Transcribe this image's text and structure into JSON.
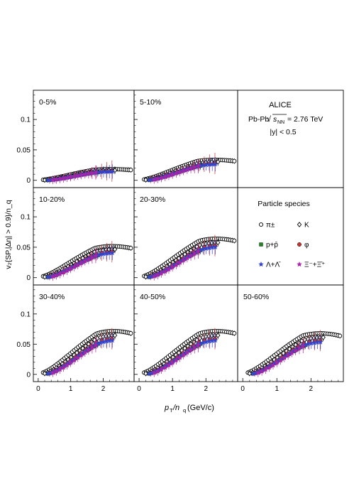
{
  "figure": {
    "experiment": "ALICE",
    "collision": "Pb-Pb",
    "energy_label": "= 2.76 TeV",
    "rapidity": "|y| < 0.5",
    "legend_title": "Particle species",
    "xlabel_main": "p",
    "xlabel_sub": "T",
    "xlabel_rest": "/n",
    "xlabel_q": "q",
    "xlabel_unit": " (GeV/c)",
    "ylabel": "v₂{SP,|Δη| > 0.9}/n_q"
  },
  "colors": {
    "pion": "#000000",
    "kaon": "#000000",
    "proton": "#1a8a1a",
    "phi": "#cc3333",
    "lambda": "#3344cc",
    "xi": "#aa22aa"
  },
  "legend": [
    {
      "key": "pion",
      "label": "π±",
      "marker": "open-circle"
    },
    {
      "key": "kaon",
      "label": "K",
      "marker": "open-diamond"
    },
    {
      "key": "proton",
      "label": "p+p̄",
      "marker": "filled-square"
    },
    {
      "key": "phi",
      "label": "φ",
      "marker": "filled-circle"
    },
    {
      "key": "lambda",
      "label": "Λ+Λ̄",
      "marker": "filled-star"
    },
    {
      "key": "xi",
      "label": "Ξ⁻+Ξ̄⁺",
      "marker": "filled-star"
    }
  ],
  "chart_data": {
    "type": "scatter",
    "xlabel": "pT/nq (GeV/c)",
    "ylabel": "v2{SP,|Δη| > 0.9}/nq",
    "xlim": [
      -0.15,
      2.95
    ],
    "ylim": [
      -0.012,
      0.148
    ],
    "xticks": [
      "0",
      "1",
      "2"
    ],
    "yticks": [
      "0",
      "0.05",
      "0.1"
    ],
    "panels": [
      {
        "label": "0-5%",
        "amp": 0.028,
        "peak_x": 1.4
      },
      {
        "label": "5-10%",
        "amp": 0.052,
        "peak_x": 1.45
      },
      {
        "label": "",
        "amp": 0,
        "peak_x": 0
      },
      {
        "label": "10-20%",
        "amp": 0.08,
        "peak_x": 1.45
      },
      {
        "label": "20-30%",
        "amp": 0.1,
        "peak_x": 1.5
      },
      {
        "label": "",
        "amp": 0,
        "peak_x": 0
      },
      {
        "label": "30-40%",
        "amp": 0.112,
        "peak_x": 1.5
      },
      {
        "label": "40-50%",
        "amp": 0.112,
        "peak_x": 1.5
      },
      {
        "label": "50-60%",
        "amp": 0.105,
        "peak_x": 1.45
      }
    ]
  }
}
